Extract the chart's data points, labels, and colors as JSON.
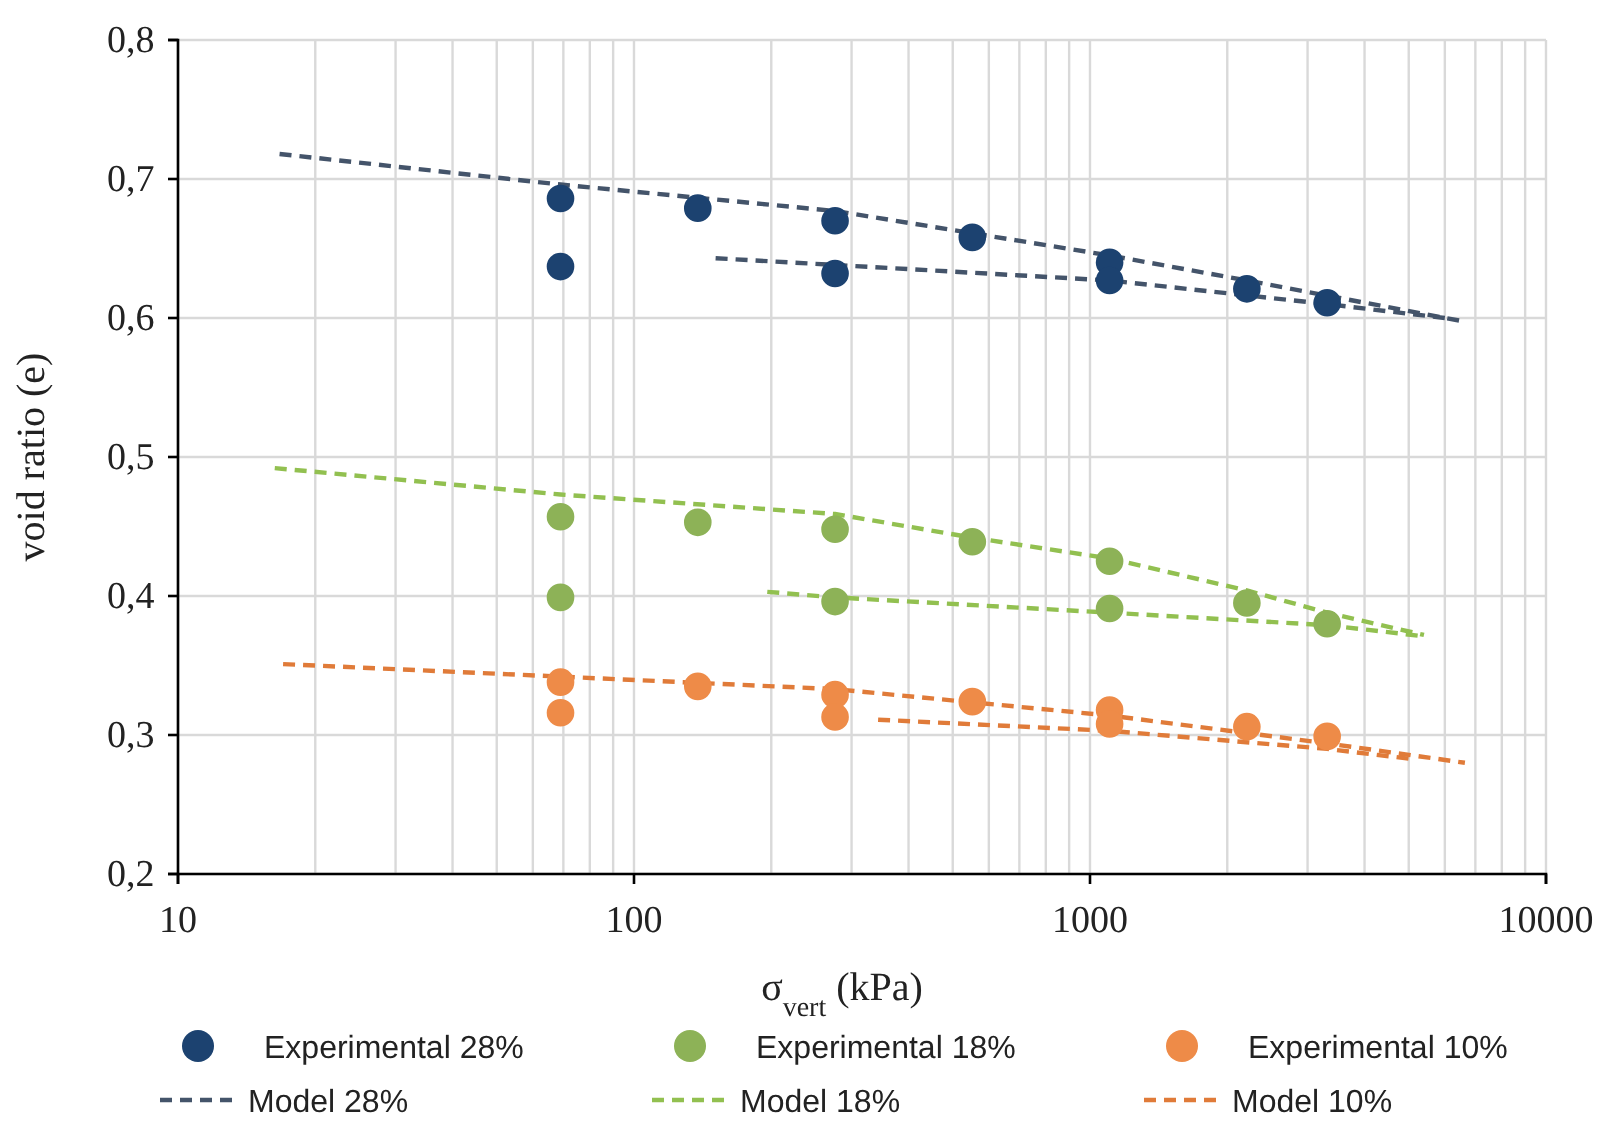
{
  "chart_data": {
    "type": "scatter",
    "xlabel": "σ$_{vert}$ (kPa)",
    "ylabel": "void ratio (e)",
    "log": "x",
    "xlim": [
      10,
      10000
    ],
    "xticks": [
      10,
      100,
      1000,
      10000
    ],
    "ylim": [
      0.2,
      0.8
    ],
    "yticks": [
      {
        "value": 0.2,
        "label": "0,2"
      },
      {
        "value": 0.3,
        "label": "0,3"
      },
      {
        "value": 0.4,
        "label": "0,4"
      },
      {
        "value": 0.5,
        "label": "0,5"
      },
      {
        "value": 0.6,
        "label": "0,6"
      },
      {
        "value": 0.7,
        "label": "0,7"
      },
      {
        "value": 0.8,
        "label": "0,8"
      }
    ],
    "grid": true,
    "legend": "bottom",
    "series": [
      {
        "name": "Experimental 28%",
        "marker": "circle",
        "color": "#1c4270",
        "x": [
          69,
          69,
          138,
          276,
          276,
          552,
          1104,
          1104,
          2208,
          3312
        ],
        "values": [
          0.686,
          0.637,
          0.679,
          0.67,
          0.632,
          0.658,
          0.64,
          0.627,
          0.621,
          0.611
        ]
      },
      {
        "name": "Experimental 18%",
        "marker": "circle",
        "color": "#8db257",
        "x": [
          69,
          69,
          138,
          276,
          276,
          552,
          1104,
          1104,
          2208,
          3312
        ],
        "values": [
          0.457,
          0.399,
          0.453,
          0.448,
          0.396,
          0.439,
          0.425,
          0.391,
          0.395,
          0.38
        ]
      },
      {
        "name": "Experimental 10%",
        "marker": "circle",
        "color": "#ee8b48",
        "x": [
          69,
          69,
          138,
          276,
          276,
          552,
          1104,
          1104,
          2208,
          3312
        ],
        "values": [
          0.338,
          0.316,
          0.335,
          0.329,
          0.313,
          0.324,
          0.318,
          0.308,
          0.306,
          0.299
        ]
      },
      {
        "name": "Model 28%",
        "type": "line",
        "line_style": "dashed",
        "marker": "none",
        "color": "#44546a",
        "x": [
          16.7,
          69,
          276,
          1104,
          2208,
          6490
        ],
        "values": [
          0.718,
          0.696,
          0.677,
          0.645,
          0.627,
          0.598
        ]
      },
      {
        "type": "line",
        "line_style": "dashed",
        "marker": "none",
        "color": "#44546a",
        "x": [
          151,
          1104,
          3312,
          6000
        ],
        "values": [
          0.643,
          0.627,
          0.61,
          0.6
        ]
      },
      {
        "name": "Model 18%",
        "type": "line",
        "line_style": "dashed",
        "marker": "none",
        "color": "#92c050",
        "x": [
          16.3,
          69,
          276,
          552,
          1104,
          2208,
          3312,
          5400
        ],
        "values": [
          0.492,
          0.473,
          0.459,
          0.442,
          0.427,
          0.404,
          0.388,
          0.372
        ]
      },
      {
        "type": "line",
        "line_style": "dashed",
        "marker": "none",
        "color": "#92c050",
        "x": [
          196,
          276,
          1104,
          3312,
          5400
        ],
        "values": [
          0.403,
          0.399,
          0.388,
          0.379,
          0.371
        ]
      },
      {
        "name": "Model 10%",
        "type": "line",
        "line_style": "dashed",
        "marker": "none",
        "color": "#e07b39",
        "x": [
          17,
          69,
          276,
          1104,
          3312,
          6640
        ],
        "values": [
          0.351,
          0.342,
          0.333,
          0.314,
          0.294,
          0.28
        ]
      },
      {
        "type": "line",
        "line_style": "dashed",
        "marker": "none",
        "color": "#e07b39",
        "x": [
          343,
          1104,
          3312,
          5000
        ],
        "values": [
          0.311,
          0.303,
          0.29,
          0.283
        ]
      }
    ]
  }
}
